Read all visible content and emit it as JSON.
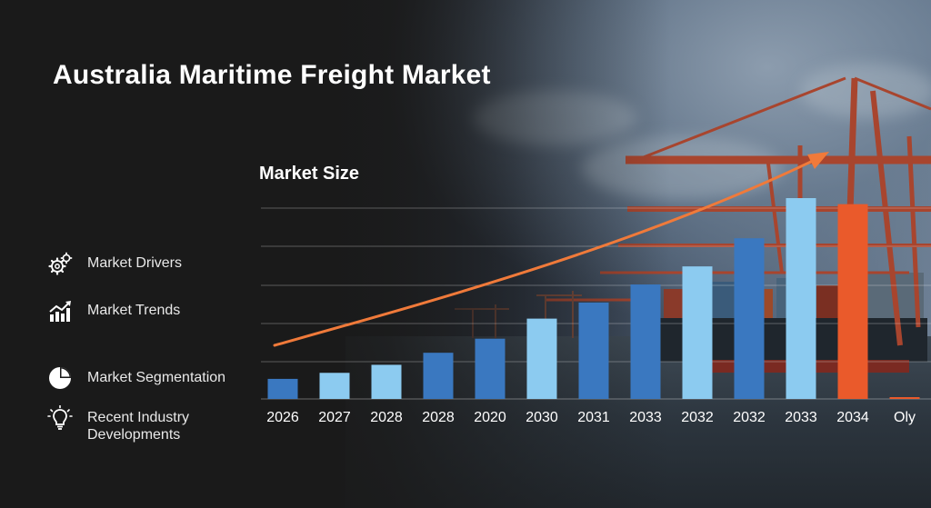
{
  "page": {
    "title": "Australia Maritime Freight Market"
  },
  "menu": {
    "items": [
      {
        "label": "Market Drivers",
        "icon": "gears-icon"
      },
      {
        "label": "Market Trends",
        "icon": "trend-chart-icon"
      },
      {
        "label": "Market Segmentation",
        "icon": "pie-chart-icon"
      },
      {
        "label_line1": "Recent Industry",
        "label_line2": "Developments",
        "icon": "lightbulb-icon"
      }
    ]
  },
  "colors": {
    "dark_blue": "#3a78c0",
    "light_blue": "#8ccbf0",
    "orange": "#ea5a2b",
    "arrow": "#f07a3a"
  },
  "chart_data": {
    "type": "bar",
    "title": "Market Size",
    "xlabel": "",
    "ylabel": "",
    "categories": [
      "2026",
      "2027",
      "2028",
      "2028",
      "2020",
      "2030",
      "2031",
      "2033",
      "2032",
      "2032",
      "2033",
      "2034",
      "Oly"
    ],
    "values": [
      10,
      13,
      17,
      23,
      30,
      40,
      48,
      57,
      66,
      80,
      100,
      97,
      0
    ],
    "bar_colors": [
      "dark_blue",
      "light_blue",
      "light_blue",
      "dark_blue",
      "dark_blue",
      "light_blue",
      "dark_blue",
      "dark_blue",
      "light_blue",
      "dark_blue",
      "light_blue",
      "orange",
      "orange"
    ],
    "ylim": [
      0,
      100
    ],
    "grid": true,
    "annotation": "upward trend arrow"
  }
}
